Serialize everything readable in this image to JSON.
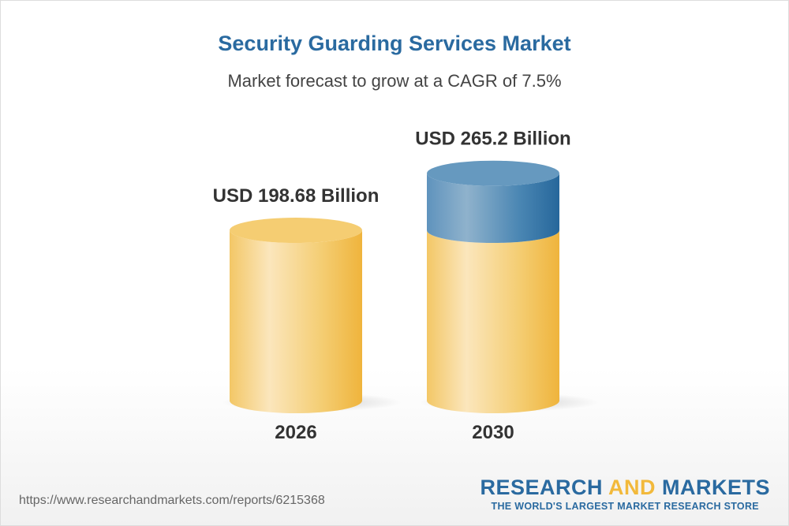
{
  "title": "Security Guarding Services Market",
  "subtitle": "Market forecast to grow at a CAGR of 7.5%",
  "chart_data": {
    "type": "bar",
    "style": "3d-cylinder",
    "categories": [
      "2026",
      "2030"
    ],
    "values": [
      198.68,
      265.2
    ],
    "unit": "USD Billion",
    "data_labels": [
      "USD 198.68 Billion",
      "USD 265.2 Billion"
    ],
    "growth_highlight_color": "#2a6aa0",
    "base_color": "#f2b93b",
    "cagr": "7.5%"
  },
  "footer": {
    "url": "https://www.researchandmarkets.com/reports/6215368",
    "logo_word1": "RESEARCH",
    "logo_word2": "AND",
    "logo_word3": "MARKETS",
    "tagline": "THE WORLD'S LARGEST MARKET RESEARCH STORE"
  }
}
